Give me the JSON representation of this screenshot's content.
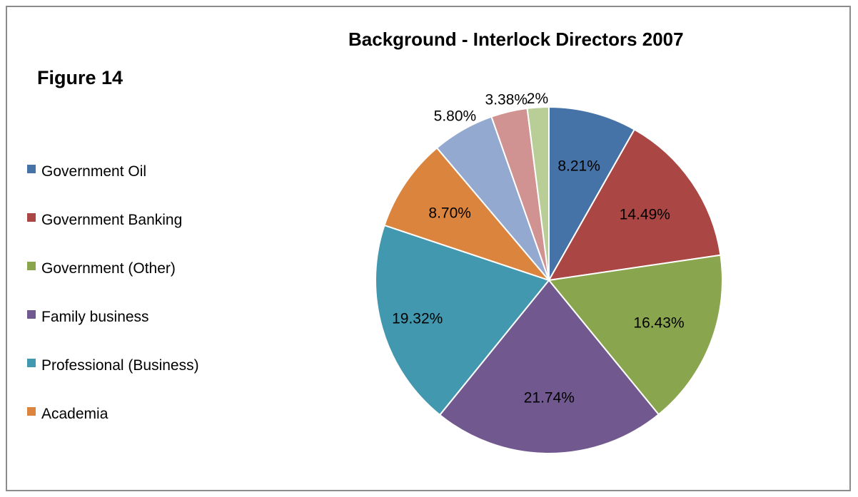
{
  "figure_label": "Figure 14",
  "chart_data": {
    "type": "pie",
    "title": "Background - Interlock Directors 2007",
    "start_angle_deg": 0,
    "direction": "clockwise",
    "legend_position": "left",
    "slices": [
      {
        "label": "Government Oil",
        "value": 8.21,
        "display": "8.21%",
        "color": "#4572a7"
      },
      {
        "label": "Government Banking",
        "value": 14.49,
        "display": "14.49%",
        "color": "#aa4643"
      },
      {
        "label": "Government (Other)",
        "value": 16.43,
        "display": "16.43%",
        "color": "#89a54e"
      },
      {
        "label": "Family business",
        "value": 21.74,
        "display": "21.74%",
        "color": "#71588f"
      },
      {
        "label": "Professional (Business)",
        "value": 19.32,
        "display": "19.32%",
        "color": "#4198af"
      },
      {
        "label": "Academia",
        "value": 8.7,
        "display": "8.70%",
        "color": "#db843d"
      },
      {
        "label": "",
        "value": 5.8,
        "display": "5.80%",
        "color": "#93a9cf"
      },
      {
        "label": "",
        "value": 3.38,
        "display": "3.38%",
        "color": "#d19392"
      },
      {
        "label": "",
        "value": 2,
        "display": "2%",
        "color": "#b9cd96"
      }
    ]
  }
}
